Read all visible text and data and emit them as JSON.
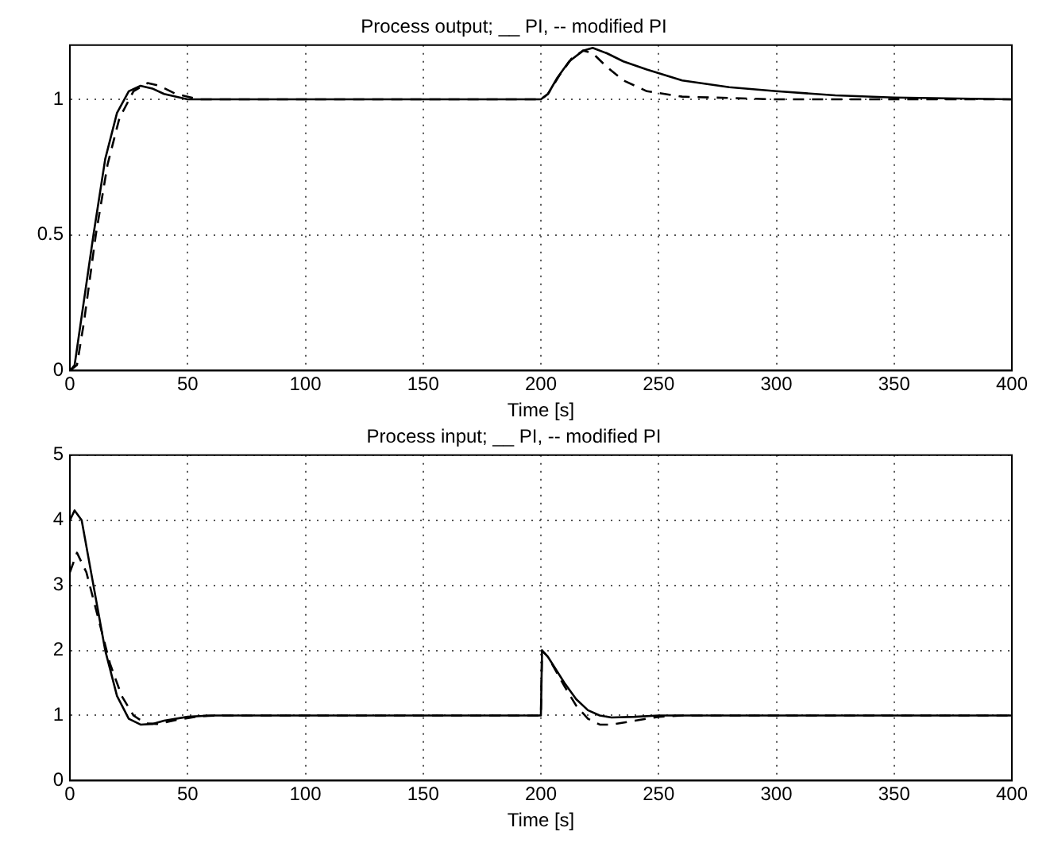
{
  "chart_data": [
    {
      "type": "line",
      "title": "Process output; __ PI, -- modified PI",
      "xlabel": "Time [s]",
      "xlim": [
        0,
        400
      ],
      "xticks": [
        0,
        50,
        100,
        150,
        200,
        250,
        300,
        350,
        400
      ],
      "ylim": [
        0,
        1.2
      ],
      "yticks": [
        0,
        0.5,
        1
      ],
      "grid": true,
      "legend": false,
      "marker": "none",
      "series": [
        {
          "color": "#000000",
          "line_style": "solid",
          "x": [
            0,
            2,
            5,
            10,
            15,
            20,
            25,
            30,
            35,
            40,
            50,
            60,
            200,
            203,
            207,
            212,
            218,
            222,
            228,
            235,
            245,
            260,
            280,
            300,
            325,
            350,
            400
          ],
          "values": [
            0,
            0.02,
            0.2,
            0.5,
            0.78,
            0.95,
            1.03,
            1.05,
            1.04,
            1.02,
            1.0,
            1.0,
            1.0,
            1.02,
            1.08,
            1.14,
            1.18,
            1.19,
            1.17,
            1.14,
            1.11,
            1.07,
            1.045,
            1.03,
            1.015,
            1.007,
            1.0
          ]
        },
        {
          "color": "#000000",
          "line_style": "dashed",
          "x": [
            0,
            3,
            6,
            11,
            16,
            21,
            27,
            33,
            38,
            45,
            55,
            200,
            203,
            208,
            213,
            218,
            222,
            228,
            235,
            245,
            260,
            300,
            400
          ],
          "values": [
            0,
            0.02,
            0.18,
            0.5,
            0.76,
            0.93,
            1.03,
            1.06,
            1.05,
            1.02,
            1.0,
            1.0,
            1.02,
            1.09,
            1.15,
            1.18,
            1.17,
            1.12,
            1.07,
            1.03,
            1.01,
            1.0,
            1.0
          ]
        }
      ]
    },
    {
      "type": "line",
      "title": "Process input; __ PI, -- modified PI",
      "xlabel": "Time [s]",
      "xlim": [
        0,
        400
      ],
      "xticks": [
        0,
        50,
        100,
        150,
        200,
        250,
        300,
        350,
        400
      ],
      "ylim": [
        0,
        5
      ],
      "yticks": [
        0,
        1,
        2,
        3,
        4,
        5
      ],
      "grid": true,
      "legend": false,
      "marker": "none",
      "series": [
        {
          "color": "#000000",
          "line_style": "solid",
          "x": [
            0,
            2,
            5,
            10,
            15,
            20,
            25,
            30,
            35,
            40,
            50,
            60,
            200,
            200.5,
            203,
            210,
            215,
            220,
            225,
            230,
            240,
            250,
            400
          ],
          "values": [
            4.0,
            4.15,
            4.0,
            3.0,
            2.0,
            1.3,
            0.95,
            0.86,
            0.87,
            0.92,
            0.98,
            1.0,
            1.0,
            2.0,
            1.9,
            1.5,
            1.25,
            1.08,
            1.0,
            0.97,
            0.98,
            1.0,
            1.0
          ]
        },
        {
          "color": "#000000",
          "line_style": "dashed",
          "x": [
            0,
            3,
            7,
            12,
            17,
            22,
            27,
            32,
            37,
            45,
            55,
            65,
            200,
            200.5,
            203,
            210,
            215,
            220,
            225,
            230,
            240,
            250,
            260,
            400
          ],
          "values": [
            3.2,
            3.5,
            3.2,
            2.5,
            1.8,
            1.3,
            1.0,
            0.88,
            0.87,
            0.93,
            0.99,
            1.0,
            1.0,
            2.0,
            1.9,
            1.45,
            1.15,
            0.95,
            0.86,
            0.86,
            0.92,
            0.98,
            1.0,
            1.0
          ]
        }
      ]
    }
  ]
}
